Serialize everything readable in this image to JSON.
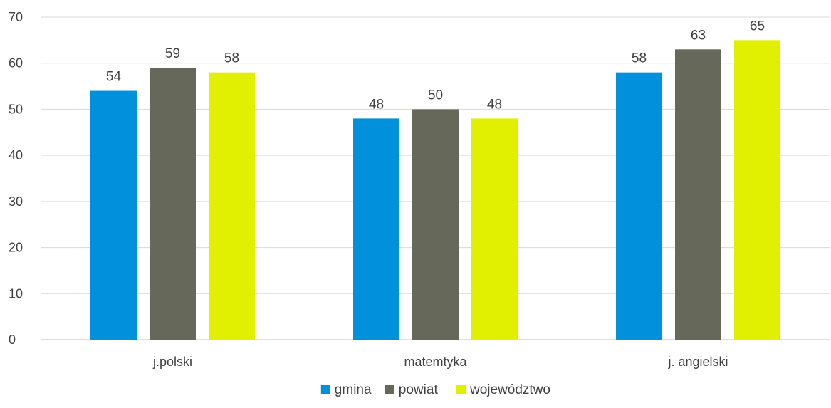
{
  "chart_data": {
    "type": "bar",
    "categories": [
      "j.polski",
      "matemtyka",
      "j. angielski"
    ],
    "series": [
      {
        "name": "gmina",
        "color": "#0191dc",
        "values": [
          54,
          48,
          58
        ]
      },
      {
        "name": "powiat",
        "color": "#66695a",
        "values": [
          59,
          50,
          63
        ]
      },
      {
        "name": "województwo",
        "color": "#e1f000",
        "values": [
          58,
          48,
          65
        ]
      }
    ],
    "yticks": [
      0,
      10,
      20,
      30,
      40,
      50,
      60,
      70
    ],
    "ylim": [
      0,
      70
    ],
    "grid": true,
    "legend": "bottom-center",
    "data_labels": true
  }
}
